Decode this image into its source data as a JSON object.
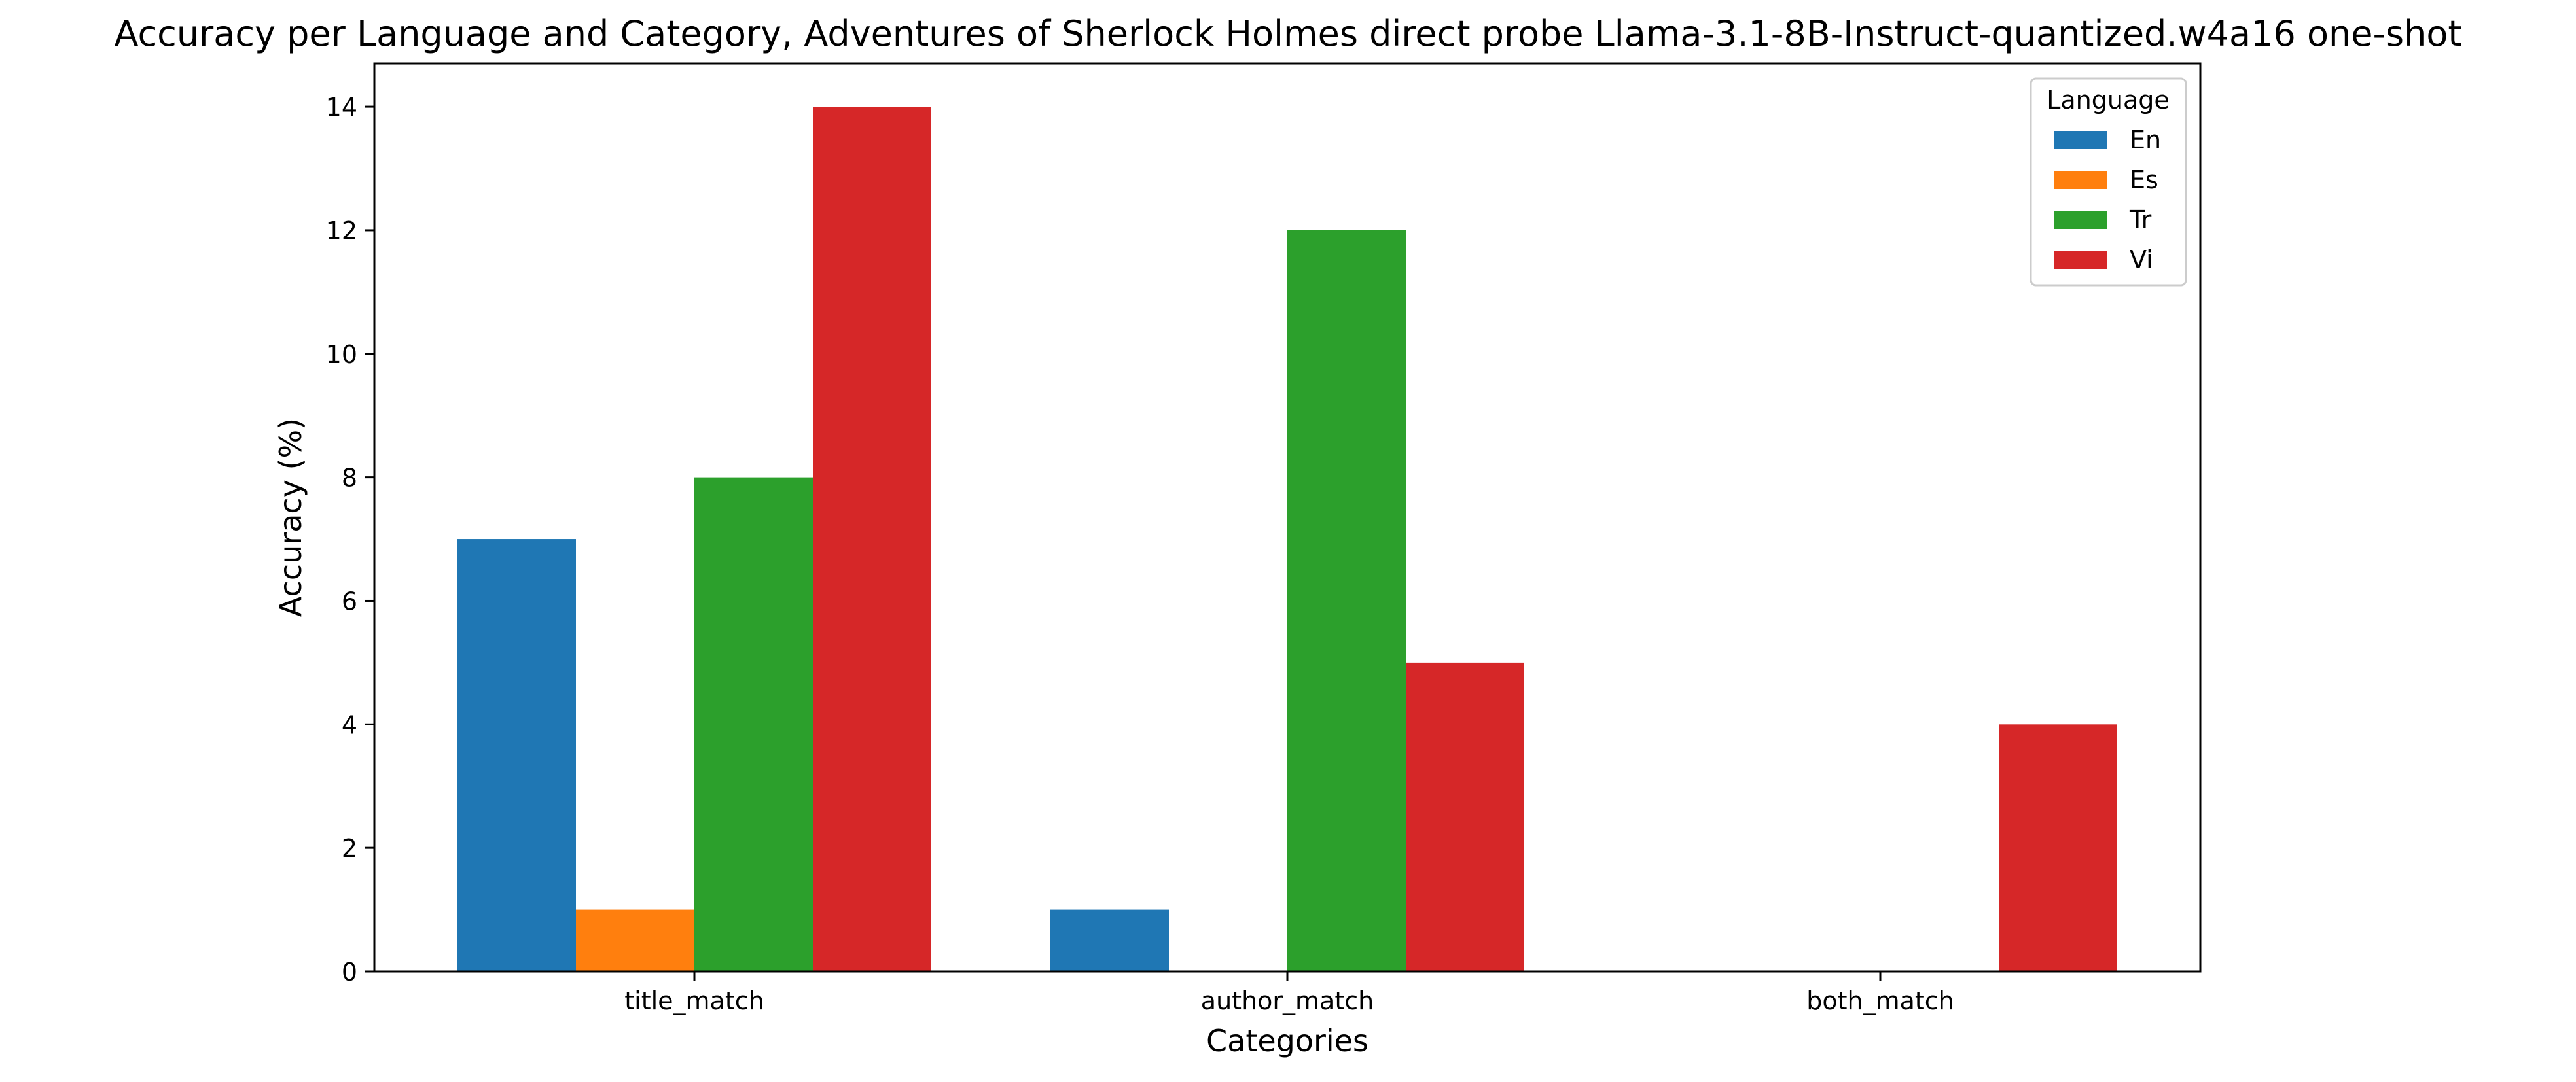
{
  "chart_data": {
    "type": "bar",
    "title": "Accuracy per Language and Category, Adventures of Sherlock Holmes direct probe Llama-3.1-8B-Instruct-quantized.w4a16 one-shot",
    "xlabel": "Categories",
    "ylabel": "Accuracy (%)",
    "categories": [
      "title_match",
      "author_match",
      "both_match"
    ],
    "ylim": [
      0,
      14.7
    ],
    "yticks": [
      0,
      2,
      4,
      6,
      8,
      10,
      12,
      14
    ],
    "grid": false,
    "legend": {
      "title": "Language",
      "placement": "top-right"
    },
    "series": [
      {
        "name": "En",
        "color": "#1f77b4",
        "values": [
          7,
          1,
          0
        ]
      },
      {
        "name": "Es",
        "color": "#ff7f0e",
        "values": [
          1,
          0,
          0
        ]
      },
      {
        "name": "Tr",
        "color": "#2ca02c",
        "values": [
          8,
          12,
          0
        ]
      },
      {
        "name": "Vi",
        "color": "#d62728",
        "values": [
          14,
          5,
          4
        ]
      }
    ]
  }
}
